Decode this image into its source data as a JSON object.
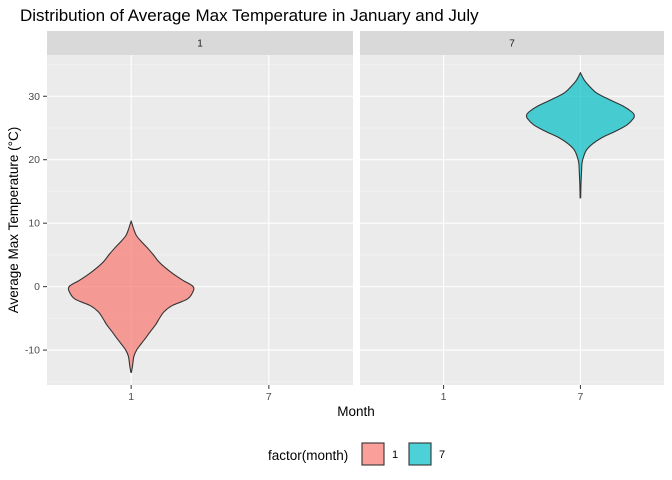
{
  "chart_data": {
    "type": "violin",
    "title": "Distribution of Average Max Temperature in January and July",
    "xlabel": "Month",
    "ylabel": "Average Max Temperature (°C)",
    "ylim": [
      -15.5,
      36.5
    ],
    "yticks": [
      -10,
      0,
      10,
      20,
      30
    ],
    "ytick_labels": [
      "-10",
      "0",
      "10",
      "20",
      "30"
    ],
    "categories": [
      "1",
      "7"
    ],
    "facets": [
      {
        "label": "1",
        "month": "1"
      },
      {
        "label": "7",
        "month": "7"
      }
    ],
    "legend": {
      "title": "factor(month)",
      "position": "bottom"
    },
    "series": [
      {
        "name": "1",
        "month": "1",
        "color": "#F8766D",
        "min": -13.5,
        "max": 10.2,
        "density": [
          [
            -13.5,
            0.01
          ],
          [
            -12.5,
            0.05
          ],
          [
            -11,
            0.1
          ],
          [
            -10,
            0.2
          ],
          [
            -9,
            0.37
          ],
          [
            -8,
            0.55
          ],
          [
            -7,
            0.72
          ],
          [
            -6,
            0.9
          ],
          [
            -5,
            1.04
          ],
          [
            -4,
            1.2
          ],
          [
            -3,
            1.5
          ],
          [
            -2,
            2.05
          ],
          [
            -1,
            2.25
          ],
          [
            0,
            2.28
          ],
          [
            1,
            1.9
          ],
          [
            2,
            1.55
          ],
          [
            3,
            1.25
          ],
          [
            4,
            1.0
          ],
          [
            5,
            0.82
          ],
          [
            6,
            0.62
          ],
          [
            7,
            0.4
          ],
          [
            8,
            0.2
          ],
          [
            9,
            0.1
          ],
          [
            10.2,
            0.01
          ]
        ]
      },
      {
        "name": "7",
        "month": "7",
        "color": "#00BFC4",
        "min": 14.0,
        "max": 33.6,
        "density": [
          [
            14,
            0.01
          ],
          [
            16,
            0.02
          ],
          [
            18,
            0.04
          ],
          [
            19.5,
            0.06
          ],
          [
            20.5,
            0.12
          ],
          [
            21.5,
            0.22
          ],
          [
            22.5,
            0.45
          ],
          [
            23.5,
            0.8
          ],
          [
            24.5,
            1.3
          ],
          [
            25.5,
            1.72
          ],
          [
            26.5,
            1.95
          ],
          [
            27,
            1.98
          ],
          [
            27.5,
            1.9
          ],
          [
            28.5,
            1.55
          ],
          [
            29.5,
            1.05
          ],
          [
            30.5,
            0.6
          ],
          [
            31.5,
            0.35
          ],
          [
            32.5,
            0.15
          ],
          [
            33.6,
            0.01
          ]
        ]
      }
    ]
  },
  "colors": {
    "panel_bg": "#EBEBEB",
    "grid_major": "#FFFFFF",
    "strip_bg": "#D9D9D9",
    "outline": "#333333",
    "jan_fill": "#F8766D",
    "jul_fill": "#00BFC4"
  }
}
